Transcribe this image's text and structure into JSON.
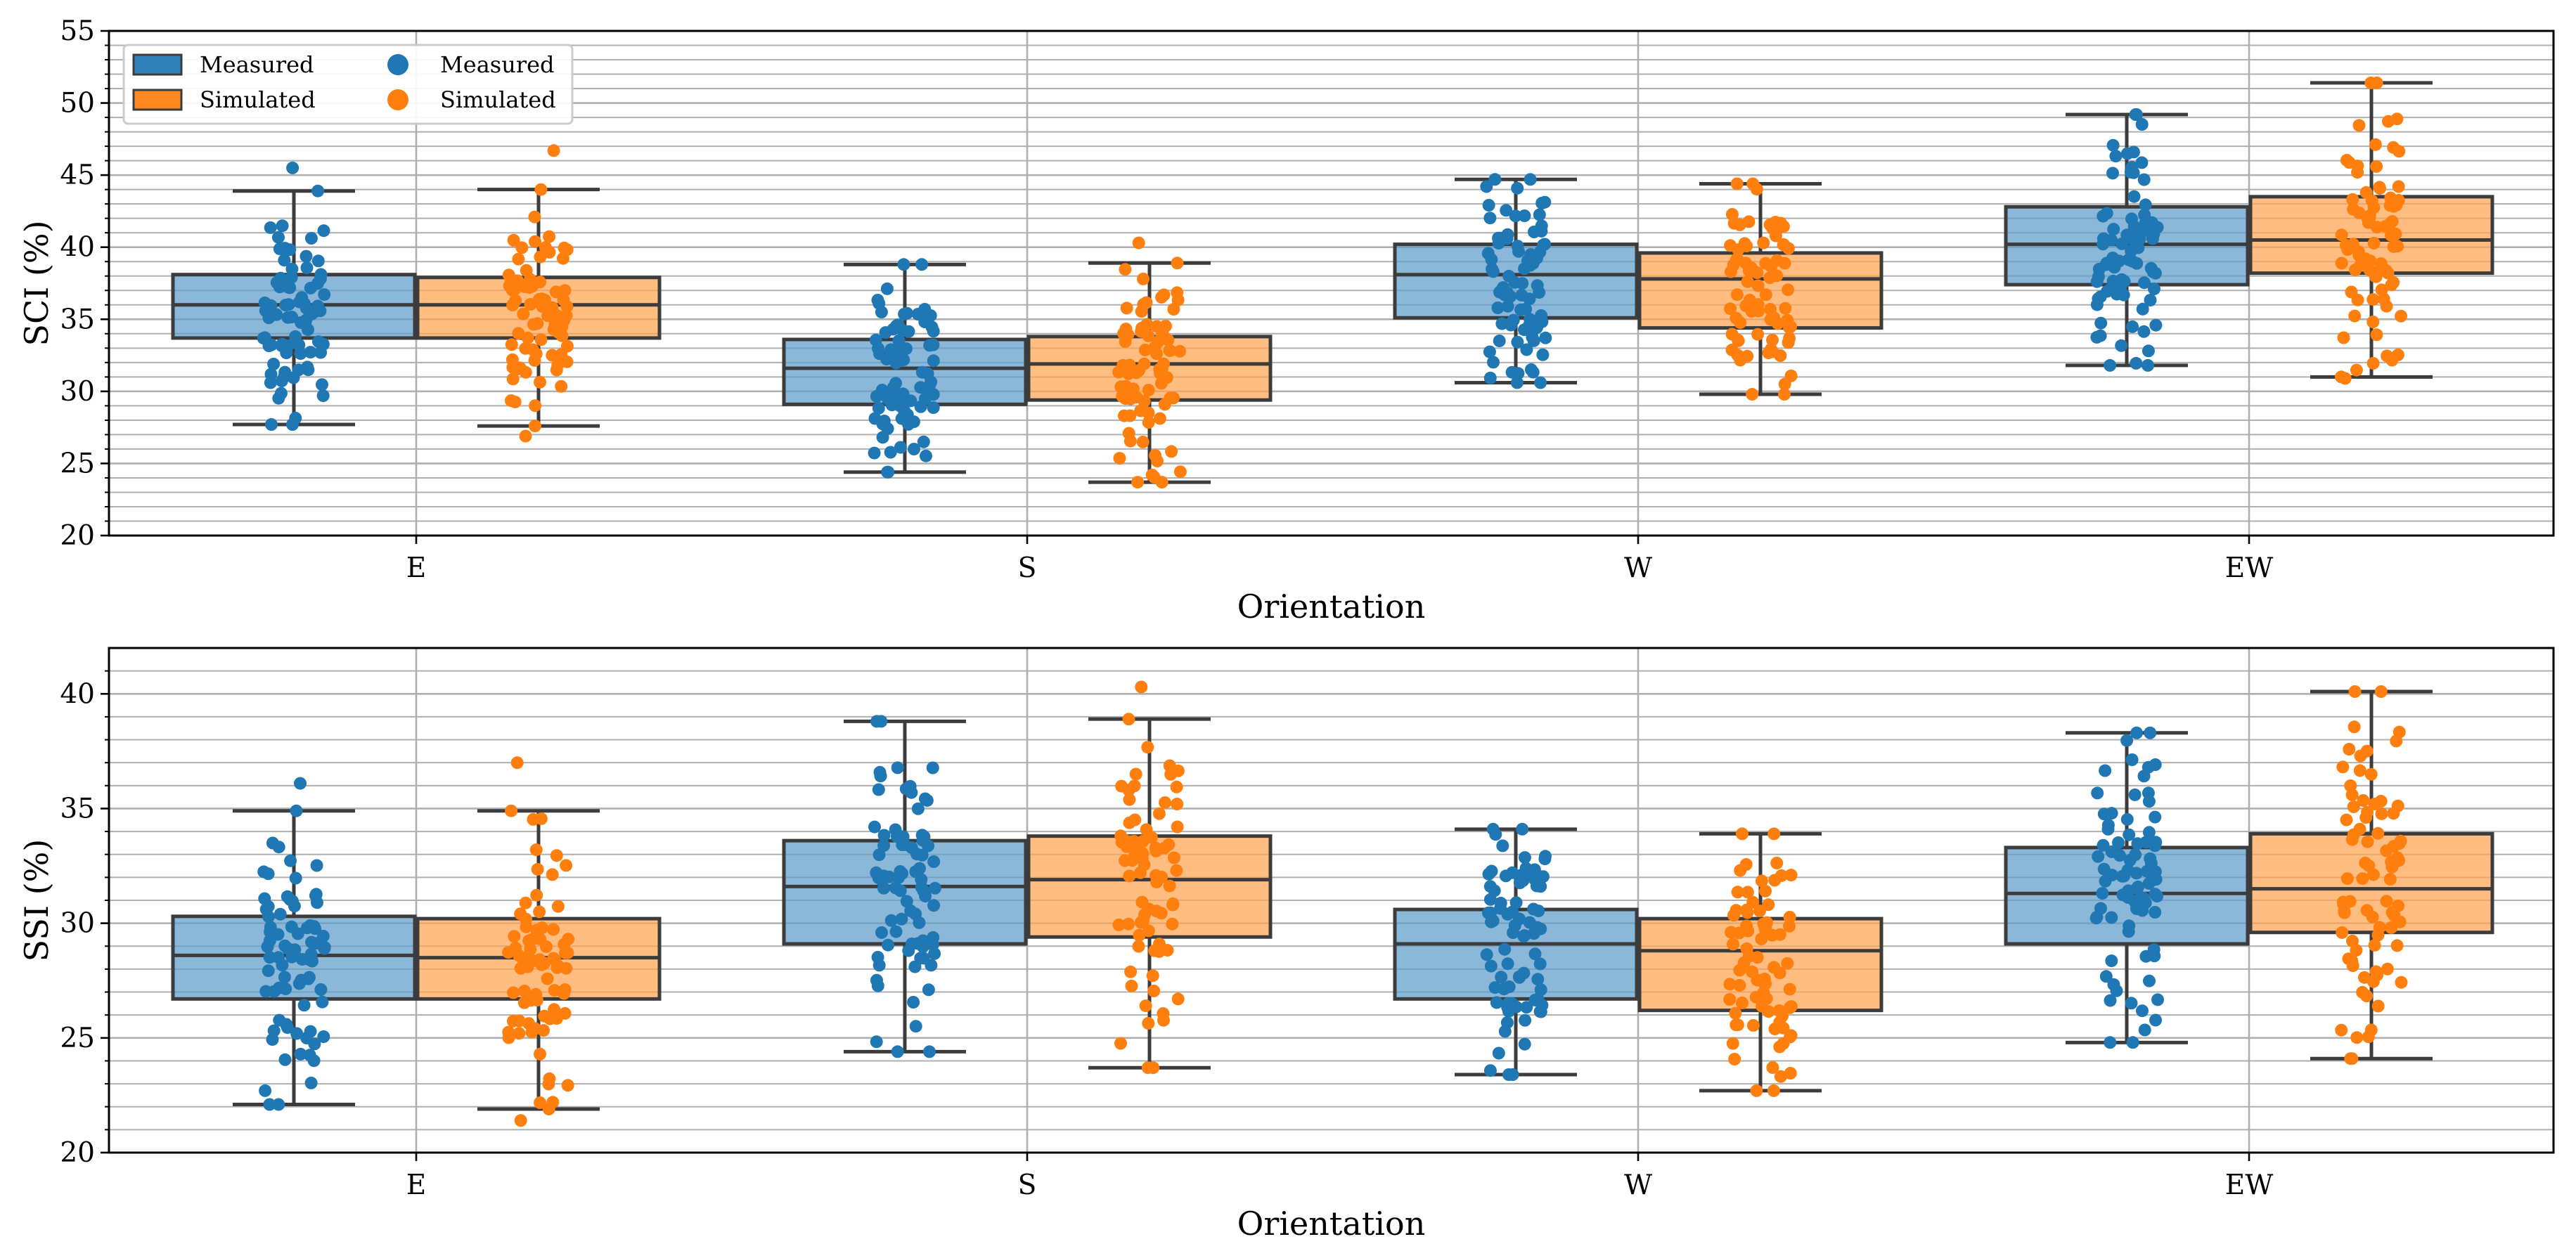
{
  "chart_data": [
    {
      "type": "box",
      "panel": "top",
      "ylabel": "SCI (%)",
      "xlabel": "Orientation",
      "ylim": [
        20,
        55
      ],
      "yticks": [
        20,
        25,
        30,
        35,
        40,
        45,
        50,
        55
      ],
      "categories": [
        "E",
        "S",
        "W",
        "EW"
      ],
      "legend": {
        "placement": "top-left",
        "box_entries": [
          "Measured",
          "Simulated"
        ],
        "point_entries": [
          "Measured",
          "Simulated"
        ]
      },
      "series": [
        {
          "name": "Measured",
          "color": "#1f77b4",
          "stats": [
            {
              "wlo": 27.7,
              "q1": 33.7,
              "med": 36.0,
              "q3": 38.1,
              "whi": 43.9,
              "min": 27.7,
              "max": 45.5
            },
            {
              "wlo": 24.4,
              "q1": 29.1,
              "med": 31.6,
              "q3": 33.6,
              "whi": 38.8,
              "min": 24.4,
              "max": 38.8
            },
            {
              "wlo": 30.6,
              "q1": 35.1,
              "med": 38.1,
              "q3": 40.2,
              "whi": 44.7,
              "min": 30.6,
              "max": 44.7
            },
            {
              "wlo": 31.8,
              "q1": 37.4,
              "med": 40.2,
              "q3": 42.8,
              "whi": 49.2,
              "min": 31.8,
              "max": 49.2
            }
          ]
        },
        {
          "name": "Simulated",
          "color": "#ff7f0e",
          "stats": [
            {
              "wlo": 27.6,
              "q1": 33.7,
              "med": 36.0,
              "q3": 37.9,
              "whi": 44.0,
              "min": 26.9,
              "max": 46.7
            },
            {
              "wlo": 23.7,
              "q1": 29.4,
              "med": 31.9,
              "q3": 33.8,
              "whi": 38.9,
              "min": 23.7,
              "max": 40.3
            },
            {
              "wlo": 29.8,
              "q1": 34.4,
              "med": 37.8,
              "q3": 39.6,
              "whi": 44.4,
              "min": 29.8,
              "max": 44.4
            },
            {
              "wlo": 31.0,
              "q1": 38.2,
              "med": 40.5,
              "q3": 43.5,
              "whi": 51.4,
              "min": 30.9,
              "max": 51.4
            }
          ]
        }
      ]
    },
    {
      "type": "box",
      "panel": "bottom",
      "ylabel": "SSI (%)",
      "xlabel": "Orientation",
      "ylim": [
        20,
        42
      ],
      "yticks": [
        20,
        25,
        30,
        35,
        40
      ],
      "categories": [
        "E",
        "S",
        "W",
        "EW"
      ],
      "series": [
        {
          "name": "Measured",
          "color": "#1f77b4",
          "stats": [
            {
              "wlo": 22.1,
              "q1": 26.7,
              "med": 28.6,
              "q3": 30.3,
              "whi": 34.9,
              "min": 22.1,
              "max": 36.1
            },
            {
              "wlo": 24.4,
              "q1": 29.1,
              "med": 31.6,
              "q3": 33.6,
              "whi": 38.8,
              "min": 24.4,
              "max": 38.8
            },
            {
              "wlo": 23.4,
              "q1": 26.7,
              "med": 29.1,
              "q3": 30.6,
              "whi": 34.1,
              "min": 23.4,
              "max": 34.1
            },
            {
              "wlo": 24.8,
              "q1": 29.1,
              "med": 31.3,
              "q3": 33.3,
              "whi": 38.3,
              "min": 24.8,
              "max": 38.3
            }
          ]
        },
        {
          "name": "Simulated",
          "color": "#ff7f0e",
          "stats": [
            {
              "wlo": 21.9,
              "q1": 26.7,
              "med": 28.5,
              "q3": 30.2,
              "whi": 34.9,
              "min": 21.4,
              "max": 37.0
            },
            {
              "wlo": 23.7,
              "q1": 29.4,
              "med": 31.9,
              "q3": 33.8,
              "whi": 38.9,
              "min": 23.7,
              "max": 40.3
            },
            {
              "wlo": 22.7,
              "q1": 26.2,
              "med": 28.8,
              "q3": 30.2,
              "whi": 33.9,
              "min": 22.7,
              "max": 33.9
            },
            {
              "wlo": 24.1,
              "q1": 29.6,
              "med": 31.5,
              "q3": 33.9,
              "whi": 40.1,
              "min": 24.1,
              "max": 40.1
            }
          ]
        }
      ]
    }
  ]
}
